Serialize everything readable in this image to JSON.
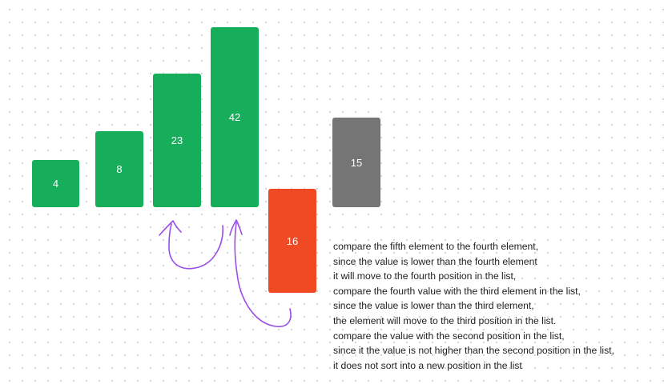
{
  "colors": {
    "sorted": "#16ad5b",
    "current": "#f04a24",
    "unsorted": "#757575",
    "arrow": "#9b4fe8",
    "text": "#1f1f1f"
  },
  "elements": [
    {
      "value": "4",
      "state": "sorted"
    },
    {
      "value": "8",
      "state": "sorted"
    },
    {
      "value": "23",
      "state": "sorted"
    },
    {
      "value": "42",
      "state": "sorted"
    },
    {
      "value": "16",
      "state": "current"
    },
    {
      "value": "15",
      "state": "unsorted"
    }
  ],
  "arrows": [
    {
      "from": "42",
      "to": "23",
      "icon": "curved-arrow-icon"
    },
    {
      "from": "16",
      "to": "42",
      "icon": "curved-arrow-icon"
    }
  ],
  "notes": [
    "compare the fifth element to the fourth element,",
    "since the value is lower than the fourth element",
    "it will move to the fourth position in the list,",
    "compare the fourth value with the third element in the list,",
    "since the value is lower than the third element,",
    "the element will move to the third position in the list.",
    "compare the value with the second position in the list,",
    "since it the value is not higher than the second position in the list,",
    "it does not sort into a new position in the list"
  ]
}
